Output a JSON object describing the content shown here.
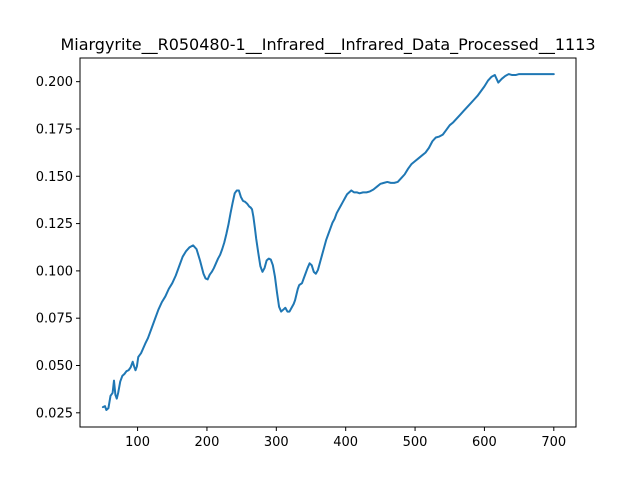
{
  "chart_data": {
    "type": "line",
    "title": "Miargyrite__R050480-1__Infrared__Infrared_Data_Processed__1113",
    "xlabel": "",
    "ylabel": "",
    "xlim": [
      17,
      732
    ],
    "ylim": [
      0.0175,
      0.2125
    ],
    "xticks": [
      100,
      200,
      300,
      400,
      500,
      600,
      700
    ],
    "yticks": [
      0.025,
      0.05,
      0.075,
      0.1,
      0.125,
      0.15,
      0.175,
      0.2
    ],
    "xtick_labels": [
      "100",
      "200",
      "300",
      "400",
      "500",
      "600",
      "700"
    ],
    "ytick_labels": [
      "0.025",
      "0.050",
      "0.075",
      "0.100",
      "0.125",
      "0.150",
      "0.175",
      "0.200"
    ],
    "grid": false,
    "series": [
      {
        "color": "#1f77b4",
        "x": [
          50,
          53,
          55,
          58,
          61,
          64,
          66,
          68,
          70,
          72,
          75,
          78,
          81,
          84,
          87,
          90,
          93,
          95,
          97,
          99,
          101,
          103,
          105,
          108,
          111,
          115,
          120,
          125,
          130,
          135,
          140,
          145,
          150,
          155,
          160,
          165,
          170,
          175,
          180,
          185,
          190,
          195,
          198,
          201,
          204,
          207,
          210,
          213,
          216,
          219,
          222,
          225,
          228,
          231,
          234,
          237,
          240,
          243,
          246,
          249,
          252,
          255,
          258,
          261,
          263,
          265,
          267,
          269,
          271,
          274,
          277,
          280,
          283,
          286,
          289,
          292,
          295,
          298,
          301,
          304,
          307,
          310,
          313,
          316,
          319,
          322,
          325,
          327,
          329,
          331,
          333,
          335,
          337,
          339,
          342,
          345,
          348,
          351,
          354,
          357,
          360,
          363,
          366,
          369,
          372,
          375,
          378,
          381,
          384,
          387,
          390,
          393,
          396,
          399,
          402,
          405,
          408,
          412,
          416,
          420,
          425,
          430,
          435,
          440,
          445,
          450,
          455,
          460,
          465,
          470,
          475,
          480,
          485,
          490,
          495,
          500,
          505,
          510,
          515,
          520,
          525,
          530,
          535,
          540,
          545,
          550,
          555,
          560,
          565,
          570,
          575,
          580,
          585,
          590,
          595,
          600,
          605,
          610,
          615,
          620,
          625,
          630,
          635,
          640,
          645,
          650,
          655,
          660,
          665,
          670,
          675,
          680,
          685,
          690,
          695,
          700
        ],
        "y": [
          0.028,
          0.0285,
          0.0265,
          0.0275,
          0.034,
          0.0355,
          0.042,
          0.0345,
          0.0325,
          0.0355,
          0.0415,
          0.0445,
          0.0455,
          0.047,
          0.0475,
          0.049,
          0.052,
          0.0495,
          0.0475,
          0.0495,
          0.0545,
          0.0555,
          0.0565,
          0.059,
          0.0615,
          0.0645,
          0.0695,
          0.0745,
          0.0795,
          0.0835,
          0.0865,
          0.0905,
          0.0935,
          0.0975,
          0.1025,
          0.1075,
          0.1105,
          0.1125,
          0.1135,
          0.1115,
          0.1055,
          0.0985,
          0.096,
          0.0955,
          0.098,
          0.0995,
          0.1015,
          0.104,
          0.1065,
          0.1085,
          0.1115,
          0.115,
          0.1195,
          0.1245,
          0.1305,
          0.136,
          0.141,
          0.1425,
          0.1425,
          0.139,
          0.137,
          0.1365,
          0.1355,
          0.134,
          0.1335,
          0.1325,
          0.1285,
          0.123,
          0.117,
          0.1095,
          0.1025,
          0.0995,
          0.1015,
          0.1055,
          0.1065,
          0.106,
          0.103,
          0.097,
          0.0885,
          0.081,
          0.0785,
          0.0795,
          0.0805,
          0.0785,
          0.0785,
          0.0805,
          0.0825,
          0.0845,
          0.0875,
          0.0905,
          0.0925,
          0.093,
          0.0935,
          0.0955,
          0.0985,
          0.1015,
          0.104,
          0.103,
          0.0995,
          0.0985,
          0.1005,
          0.1045,
          0.1085,
          0.1125,
          0.1165,
          0.1195,
          0.1225,
          0.1255,
          0.1275,
          0.1305,
          0.1325,
          0.1345,
          0.1365,
          0.1385,
          0.1405,
          0.1415,
          0.1425,
          0.1415,
          0.1415,
          0.141,
          0.1415,
          0.1415,
          0.142,
          0.143,
          0.1445,
          0.146,
          0.1465,
          0.147,
          0.1465,
          0.1465,
          0.147,
          0.149,
          0.151,
          0.154,
          0.1565,
          0.158,
          0.1595,
          0.161,
          0.1625,
          0.165,
          0.1685,
          0.1705,
          0.171,
          0.172,
          0.1745,
          0.177,
          0.1785,
          0.1805,
          0.1825,
          0.1845,
          0.1865,
          0.1885,
          0.1905,
          0.1925,
          0.195,
          0.1975,
          0.2005,
          0.2025,
          0.2035,
          0.1995,
          0.2015,
          0.203,
          0.204,
          0.2035,
          0.2035,
          0.204,
          0.204,
          0.204,
          0.204,
          0.204,
          0.204,
          0.204,
          0.204,
          0.204,
          0.204,
          0.204
        ]
      }
    ]
  }
}
